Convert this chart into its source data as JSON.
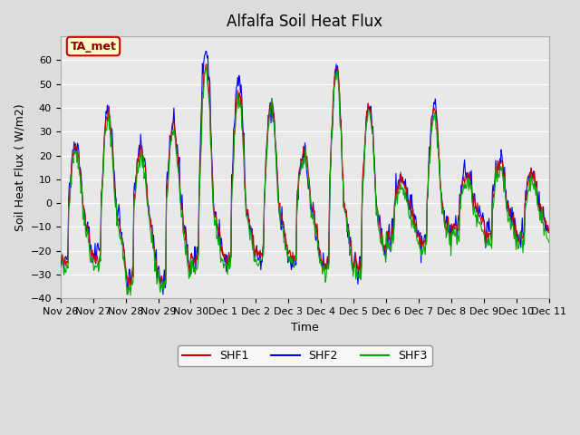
{
  "title": "Alfalfa Soil Heat Flux",
  "ylabel": "Soil Heat Flux ( W/m2)",
  "xlabel": "Time",
  "ylim": [
    -40,
    70
  ],
  "yticks": [
    -40,
    -30,
    -20,
    -10,
    0,
    10,
    20,
    30,
    40,
    50,
    60
  ],
  "background_color": "#dcdcdc",
  "plot_bg_color": "#e8e8e8",
  "legend_entries": [
    "SHF1",
    "SHF2",
    "SHF3"
  ],
  "legend_colors": [
    "#cc0000",
    "#0000cc",
    "#00aa00"
  ],
  "annotation_text": "TA_met",
  "annotation_bg": "#ffffcc",
  "annotation_border": "#cc0000",
  "line_colors": {
    "SHF1": "#cc0000",
    "SHF2": "#0000ee",
    "SHF3": "#00aa00"
  },
  "x_tick_labels": [
    "Nov 26",
    "Nov 27",
    "Nov 28",
    "Nov 29",
    "Nov 30",
    "Dec 1",
    "Dec 2",
    "Dec 3",
    "Dec 4",
    "Dec 5",
    "Dec 6",
    "Dec 7",
    "Dec 8",
    "Dec 9",
    "Dec 10",
    "Dec 11"
  ],
  "n_days": 15,
  "points_per_day": 48
}
